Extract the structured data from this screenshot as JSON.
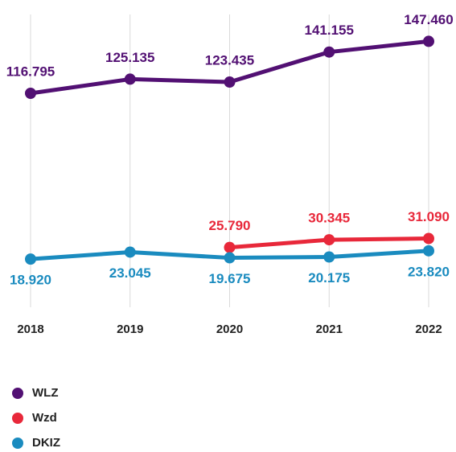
{
  "chart_data": {
    "type": "line",
    "categories": [
      "2018",
      "2019",
      "2020",
      "2021",
      "2022"
    ],
    "series": [
      {
        "name": "WLZ",
        "color": "#521073",
        "label_position": "above",
        "values": [
          116795,
          125135,
          123435,
          141155,
          147460
        ],
        "value_labels": [
          "116.795",
          "125.135",
          "123.435",
          "141.155",
          "147.460"
        ]
      },
      {
        "name": "Wzd",
        "color": "#e8283a",
        "label_position": "above",
        "values": [
          null,
          null,
          25790,
          30345,
          31090
        ],
        "value_labels": [
          null,
          null,
          "25.790",
          "30.345",
          "31.090"
        ]
      },
      {
        "name": "DKIZ",
        "color": "#1a8bbf",
        "label_position": "below",
        "values": [
          18920,
          23045,
          19675,
          20175,
          23820
        ],
        "value_labels": [
          "18.920",
          "23.045",
          "19.675",
          "20.175",
          "23.820"
        ]
      }
    ],
    "ylim": [
      0,
      160000
    ],
    "legend": "bottom-left"
  }
}
